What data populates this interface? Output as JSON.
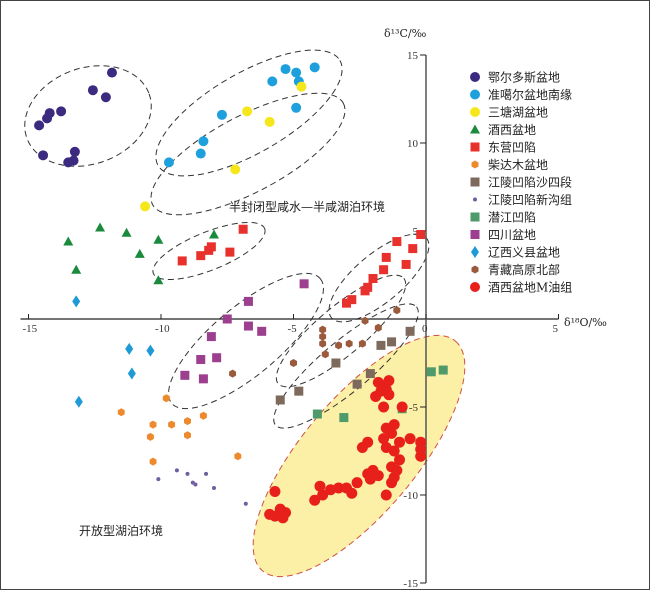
{
  "chart_data": {
    "type": "scatter",
    "xlabel": "δ¹⁸O/‰",
    "ylabel": "δ¹³C/‰",
    "xlim": [
      -15,
      5
    ],
    "ylim": [
      -15,
      15
    ],
    "xticks": [
      -15,
      -10,
      -5,
      0,
      5
    ],
    "yticks": [
      15,
      10,
      5,
      -5,
      -10,
      -15
    ],
    "x_tick_labels": [
      "-15",
      "-10",
      "-5",
      "0",
      "5"
    ],
    "y_tick_labels": [
      "15",
      "10",
      "5",
      "-5",
      "-10",
      "-15"
    ],
    "legend_position": "right",
    "annotations": [
      "半封闭型咸水—半咸湖泊环境",
      "开放型湖泊环境"
    ],
    "series": [
      {
        "name": "鄂尔多斯盆地",
        "marker": "circle",
        "color": "#3b2a80",
        "points": [
          [
            -11.85,
            14.0
          ],
          [
            -12.57,
            13.0
          ],
          [
            -12.08,
            12.6
          ],
          [
            -13.77,
            11.8
          ],
          [
            -14.2,
            11.7
          ],
          [
            -14.3,
            11.4
          ],
          [
            -14.6,
            11.0
          ],
          [
            -14.45,
            9.3
          ],
          [
            -13.25,
            9.5
          ],
          [
            -13.5,
            8.9
          ],
          [
            -13.3,
            9.0
          ]
        ]
      },
      {
        "name": "准噶尔盆地南缘",
        "marker": "circle",
        "color": "#1ea0dc",
        "points": [
          [
            -5.3,
            14.2
          ],
          [
            -4.9,
            14.0
          ],
          [
            -5.8,
            13.5
          ],
          [
            -4.2,
            14.3
          ],
          [
            -4.8,
            13.5
          ],
          [
            -7.7,
            11.6
          ],
          [
            -8.4,
            10.1
          ],
          [
            -8.5,
            9.4
          ],
          [
            -9.7,
            8.9
          ],
          [
            -4.9,
            12.0
          ]
        ]
      },
      {
        "name": "三塘湖盆地",
        "marker": "circle",
        "color": "#f5e71c",
        "points": [
          [
            -4.7,
            13.2
          ],
          [
            -6.75,
            11.8
          ],
          [
            -5.9,
            11.2
          ],
          [
            -7.2,
            8.5
          ],
          [
            -10.6,
            6.4
          ]
        ]
      },
      {
        "name": "酒西盆地",
        "marker": "triangle",
        "color": "#1a8a3c",
        "points": [
          [
            -13.5,
            4.4
          ],
          [
            -12.3,
            5.2
          ],
          [
            -11.3,
            4.9
          ],
          [
            -10.8,
            3.7
          ],
          [
            -10.1,
            4.5
          ],
          [
            -13.2,
            2.8
          ],
          [
            -10.1,
            2.2
          ],
          [
            -8.0,
            4.8
          ]
        ]
      },
      {
        "name": "东营凹陷",
        "marker": "square",
        "color": "#e8312c",
        "points": [
          [
            -9.2,
            3.3
          ],
          [
            -8.5,
            3.6
          ],
          [
            -8.2,
            3.9
          ],
          [
            -8.1,
            4.1
          ],
          [
            -7.4,
            3.8
          ],
          [
            -6.9,
            5.1
          ],
          [
            -0.2,
            4.8
          ],
          [
            -1.1,
            4.4
          ],
          [
            -0.5,
            4.0
          ],
          [
            -1.5,
            3.5
          ],
          [
            -0.75,
            3.1
          ],
          [
            -1.6,
            2.8
          ],
          [
            -2.0,
            2.3
          ],
          [
            -2.2,
            1.8
          ],
          [
            -2.3,
            1.6
          ],
          [
            -3.0,
            0.9
          ],
          [
            -2.8,
            1.1
          ]
        ]
      },
      {
        "name": "柴达木盆地",
        "marker": "hexagon",
        "color": "#ee8a2e",
        "points": [
          [
            -11.5,
            -5.3
          ],
          [
            -9.8,
            -4.5
          ],
          [
            -9.0,
            -5.8
          ],
          [
            -9.6,
            -6.0
          ],
          [
            -10.3,
            -6.0
          ],
          [
            -9.0,
            -6.6
          ],
          [
            -10.4,
            -6.7
          ],
          [
            -7.1,
            -7.8
          ],
          [
            -10.3,
            -8.1
          ],
          [
            -8.4,
            -5.5
          ]
        ]
      },
      {
        "name": "江陵凹陷沙四段",
        "marker": "square",
        "color": "#7d6a5c",
        "points": [
          [
            -0.6,
            -0.7
          ],
          [
            -1.7,
            -1.5
          ],
          [
            -3.4,
            -2.5
          ],
          [
            -4.8,
            -4.1
          ],
          [
            -5.5,
            -4.6
          ],
          [
            -2.6,
            -3.7
          ],
          [
            -2.1,
            -3.1
          ],
          [
            -1.3,
            -1.3
          ]
        ]
      },
      {
        "name": "江陵凹陷新沟组",
        "marker": "dot",
        "color": "#6f5ea0",
        "points": [
          [
            -10.1,
            -9.1
          ],
          [
            -9.4,
            -8.6
          ],
          [
            -9.0,
            -8.8
          ],
          [
            -8.3,
            -8.8
          ],
          [
            -8.8,
            -9.3
          ],
          [
            -8.7,
            -9.4
          ],
          [
            -8.0,
            -9.6
          ],
          [
            -6.8,
            -10.5
          ]
        ]
      },
      {
        "name": "潜江凹陷",
        "marker": "square",
        "color": "#4f9a6a",
        "points": [
          [
            0.2,
            -3.0
          ],
          [
            0.65,
            -2.9
          ],
          [
            -0.9,
            -5.1
          ],
          [
            -3.1,
            -5.6
          ],
          [
            -4.1,
            -5.4
          ]
        ]
      },
      {
        "name": "四川盆地",
        "marker": "square",
        "color": "#9b3f8e",
        "points": [
          [
            -6.7,
            1.0
          ],
          [
            -4.6,
            2.0
          ],
          [
            -7.5,
            0.0
          ],
          [
            -6.7,
            -0.4
          ],
          [
            -6.2,
            -0.7
          ],
          [
            -8.1,
            -1.0
          ],
          [
            -8.5,
            -2.3
          ],
          [
            -7.9,
            -2.2
          ],
          [
            -9.1,
            -3.2
          ],
          [
            -8.4,
            -3.4
          ]
        ]
      },
      {
        "name": "辽西义县盆地",
        "marker": "diamond",
        "color": "#1e9ad6",
        "points": [
          [
            -13.2,
            1.0
          ],
          [
            -11.2,
            -1.7
          ],
          [
            -10.4,
            -1.8
          ],
          [
            -11.1,
            -3.1
          ],
          [
            -13.1,
            -4.7
          ]
        ]
      },
      {
        "name": "青藏高原北部",
        "marker": "hexagon",
        "color": "#9a5a3c",
        "points": [
          [
            -1.1,
            0.5
          ],
          [
            -2.3,
            -0.1
          ],
          [
            -1.8,
            -0.5
          ],
          [
            -3.9,
            -0.6
          ],
          [
            -3.9,
            -1.0
          ],
          [
            -3.9,
            -1.4
          ],
          [
            -3.8,
            -2.0
          ],
          [
            -3.3,
            -1.5
          ],
          [
            -2.9,
            -1.4
          ],
          [
            -5.0,
            -2.5
          ],
          [
            -2.4,
            -1.4
          ],
          [
            -7.3,
            -3.1
          ]
        ]
      },
      {
        "name": "酒西盆地M油组",
        "marker": "bigcircle",
        "color": "#e8201c",
        "points": [
          [
            -5.7,
            -11.2
          ],
          [
            -5.5,
            -10.8
          ],
          [
            -5.3,
            -11.0
          ],
          [
            -5.4,
            -11.3
          ],
          [
            -5.9,
            -11.1
          ],
          [
            -5.7,
            -9.8
          ],
          [
            -4.2,
            -10.3
          ],
          [
            -3.9,
            -10.0
          ],
          [
            -3.6,
            -9.7
          ],
          [
            -3.3,
            -9.6
          ],
          [
            -3.0,
            -9.6
          ],
          [
            -4.0,
            -9.5
          ],
          [
            -2.8,
            -9.9
          ],
          [
            -2.6,
            -9.3
          ],
          [
            -2.2,
            -8.8
          ],
          [
            -2.0,
            -8.6
          ],
          [
            -1.8,
            -8.9
          ],
          [
            -2.1,
            -9.1
          ],
          [
            -2.4,
            -7.3
          ],
          [
            -2.2,
            -7.0
          ],
          [
            -1.5,
            -7.3
          ],
          [
            -1.2,
            -7.5
          ],
          [
            -1.0,
            -7.0
          ],
          [
            -1.6,
            -6.8
          ],
          [
            -1.3,
            -6.5
          ],
          [
            -1.5,
            -6.2
          ],
          [
            -1.2,
            -6.0
          ],
          [
            -0.6,
            -6.8
          ],
          [
            -1.0,
            -8.0
          ],
          [
            -1.1,
            -8.6
          ],
          [
            -1.3,
            -8.4
          ],
          [
            -1.2,
            -9.0
          ],
          [
            -1.3,
            -9.3
          ],
          [
            -1.5,
            -10.0
          ],
          [
            -1.8,
            -3.6
          ],
          [
            -1.6,
            -3.8
          ],
          [
            -1.5,
            -4.0
          ],
          [
            -1.4,
            -4.3
          ],
          [
            -1.7,
            -4.1
          ],
          [
            -1.4,
            -3.5
          ],
          [
            -1.9,
            -4.4
          ],
          [
            -0.9,
            -5.0
          ],
          [
            -0.2,
            -7.0
          ],
          [
            -0.2,
            -7.4
          ],
          [
            -0.2,
            -7.8
          ],
          [
            -1.6,
            -5.0
          ]
        ]
      }
    ]
  }
}
